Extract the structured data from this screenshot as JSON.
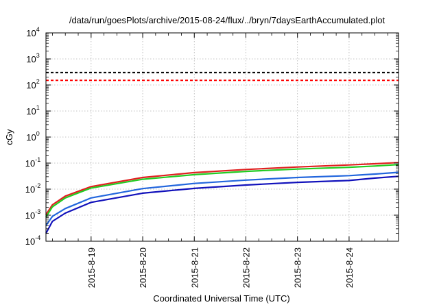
{
  "chart_data": {
    "type": "line",
    "title": "/data/run/goesPlots/archive/2015-08-24/flux/../bryn/7daysEarthAccumulated.plot",
    "xlabel": "Coordinated Universal Time (UTC)",
    "ylabel": "cGy",
    "log_y": true,
    "xlim": [
      "2015-08-18 03:00",
      "2015-08-24 23:00"
    ],
    "ylim": [
      0.0001,
      10000
    ],
    "grid": true,
    "x_ticks": [
      "2015-8-19",
      "2015-8-20",
      "2015-8-21",
      "2015-8-22",
      "2015-8-23",
      "2015-8-24"
    ],
    "y_ticks": [
      {
        "base": "10",
        "exp": "-4"
      },
      {
        "base": "10",
        "exp": "-3"
      },
      {
        "base": "10",
        "exp": "-2"
      },
      {
        "base": "10",
        "exp": "-1"
      },
      {
        "base": "10",
        "exp": "0"
      },
      {
        "base": "10",
        "exp": "1"
      },
      {
        "base": "10",
        "exp": "2"
      },
      {
        "base": "10",
        "exp": "3"
      },
      {
        "base": "10",
        "exp": "4"
      }
    ],
    "x": [
      "2015-08-18 03:00",
      "2015-08-18 06:00",
      "2015-08-18 12:00",
      "2015-08-19 00:00",
      "2015-08-20 00:00",
      "2015-08-21 00:00",
      "2015-08-22 00:00",
      "2015-08-23 00:00",
      "2015-08-24 00:00",
      "2015-08-24 12:00",
      "2015-08-24 23:00"
    ],
    "series": [
      {
        "color": "#e02020",
        "values": [
          0.00105,
          0.0025,
          0.0054,
          0.0125,
          0.028,
          0.043,
          0.057,
          0.071,
          0.085,
          0.094,
          0.105
        ]
      },
      {
        "color": "#22cc22",
        "values": [
          0.00085,
          0.0021,
          0.0046,
          0.011,
          0.024,
          0.036,
          0.048,
          0.059,
          0.069,
          0.077,
          0.088
        ]
      },
      {
        "color": "#2266dd",
        "values": [
          0.0004,
          0.0009,
          0.0018,
          0.0046,
          0.0105,
          0.0165,
          0.0222,
          0.028,
          0.033,
          0.038,
          0.044
        ]
      },
      {
        "color": "#1111bb",
        "values": [
          0.0002,
          0.00058,
          0.0012,
          0.0031,
          0.007,
          0.0107,
          0.0144,
          0.0182,
          0.0215,
          0.0265,
          0.031
        ]
      }
    ],
    "thresholds": [
      {
        "color": "#000000",
        "value": 300,
        "style": "dashed"
      },
      {
        "color": "#ff0000",
        "value": 150,
        "style": "dashed"
      }
    ]
  }
}
